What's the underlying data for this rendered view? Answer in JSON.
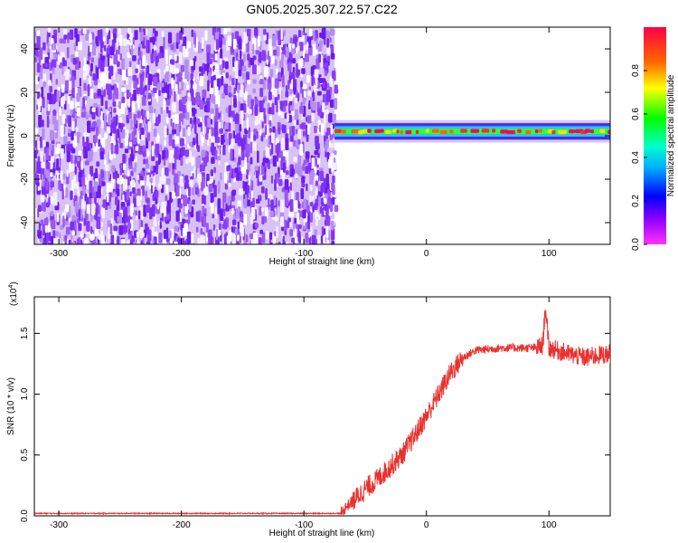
{
  "title": "GN05.2025.307.22.57.C22",
  "chart_data": [
    {
      "type": "heatmap",
      "xlabel": "Height of straight line (km)",
      "ylabel": "Frequency (Hz)",
      "xlim": [
        -320,
        150
      ],
      "ylim": [
        -50,
        50
      ],
      "x_ticks": [
        -300,
        -200,
        -100,
        0,
        100
      ],
      "y_ticks": [
        -40,
        -20,
        0,
        20,
        40
      ],
      "noise_region": {
        "x_range": [
          -320,
          -75
        ],
        "y_range": [
          -50,
          50
        ],
        "level": "low",
        "color": "#8a2be2"
      },
      "signal_band": {
        "x_range": [
          -75,
          150
        ],
        "center_freq": 2,
        "half_width": 4,
        "peak_amplitude": 1.0
      },
      "colorbar": {
        "label": "Normalized spectral amplitude",
        "range": [
          0,
          1
        ],
        "ticks": [
          0.0,
          0.2,
          0.4,
          0.6,
          0.8
        ],
        "tick_labels": [
          "0.0",
          "0.2",
          "0.4",
          "0.6",
          "0.8"
        ]
      }
    },
    {
      "type": "line",
      "xlabel": "Height of straight line (km)",
      "ylabel": "SNR (10 * v/v)",
      "y_multiplier": "(x10",
      "y_multiplier_exp": "4",
      "y_multiplier_close": ")",
      "xlim": [
        -320,
        150
      ],
      "ylim": [
        0,
        1.8
      ],
      "x_ticks": [
        -300,
        -200,
        -100,
        0,
        100
      ],
      "y_ticks": [
        0.0,
        0.5,
        1.0,
        1.5
      ],
      "y_tick_labels": [
        "0.0",
        "0.5",
        "1.0",
        "1.5"
      ],
      "color": "#e8322f",
      "series": [
        {
          "x": [
            -320,
            -250,
            -150,
            -70,
            -65,
            -60,
            -50,
            -40,
            -30,
            -20,
            -10,
            0,
            10,
            20,
            30,
            40,
            60,
            80,
            90,
            95,
            97,
            100,
            110,
            120,
            130,
            140,
            150
          ],
          "values": [
            0.02,
            0.02,
            0.02,
            0.02,
            0.08,
            0.12,
            0.22,
            0.3,
            0.4,
            0.5,
            0.65,
            0.82,
            1.0,
            1.18,
            1.3,
            1.36,
            1.38,
            1.38,
            1.38,
            1.4,
            1.72,
            1.38,
            1.35,
            1.32,
            1.3,
            1.32,
            1.33
          ]
        }
      ]
    }
  ]
}
